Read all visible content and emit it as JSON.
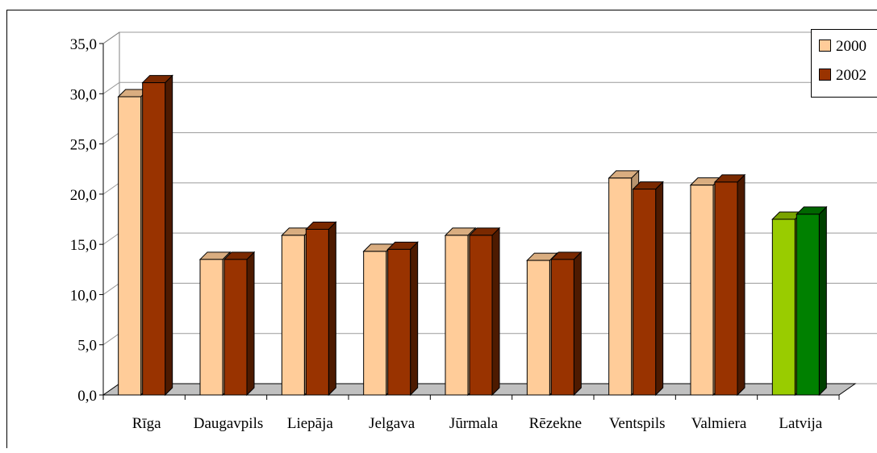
{
  "chart_data": {
    "type": "bar",
    "categories": [
      "Rīga",
      "Daugavpils",
      "Liepāja",
      "Jelgava",
      "Jūrmala",
      "Rēzekne",
      "Ventspils",
      "Valmiera",
      "Latvija"
    ],
    "series": [
      {
        "name": "2000",
        "values": [
          29.7,
          13.5,
          15.9,
          14.3,
          15.9,
          13.4,
          21.6,
          20.9,
          17.5
        ],
        "color": "#ffcc99",
        "side": "#b8946e",
        "top": "#d9ad80"
      },
      {
        "name": "2002",
        "values": [
          31.1,
          13.5,
          16.5,
          14.5,
          15.9,
          13.5,
          20.5,
          21.2,
          18.0
        ],
        "color": "#993300",
        "side": "#4d1a00",
        "top": "#7a2900"
      }
    ],
    "highlight": {
      "category": "Latvija",
      "colors": [
        {
          "color": "#99cc00",
          "side": "#5c7a00",
          "top": "#7aa300"
        },
        {
          "color": "#008000",
          "side": "#004000",
          "top": "#006600"
        }
      ]
    },
    "y_ticks": [
      "0,0",
      "5,0",
      "10,0",
      "15,0",
      "20,0",
      "25,0",
      "30,0",
      "35,0"
    ],
    "ylim": [
      0,
      35
    ],
    "grid": true,
    "legend_position": "top-right",
    "title": "",
    "xlabel": "",
    "ylabel": ""
  }
}
